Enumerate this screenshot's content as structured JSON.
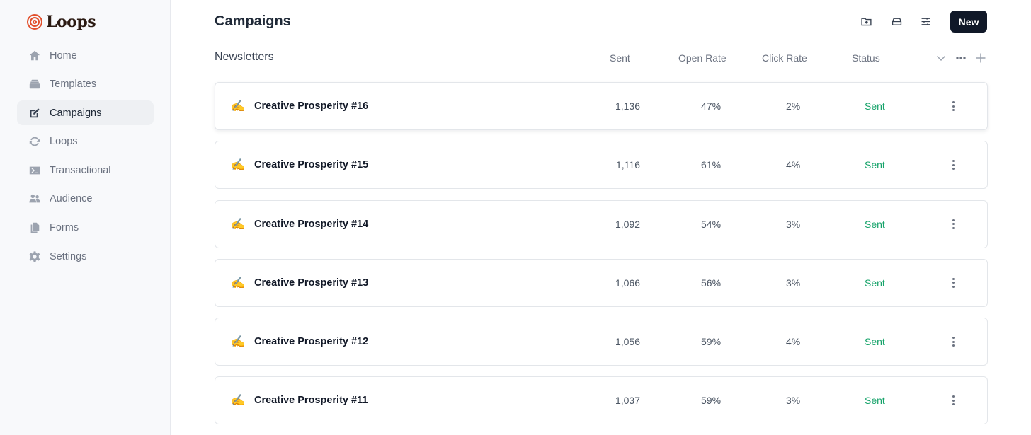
{
  "app": {
    "logo_text": "Loops",
    "brand_color": "#e2502d"
  },
  "sidebar": {
    "items": [
      {
        "label": "Home",
        "icon": "home-icon",
        "active": false
      },
      {
        "label": "Templates",
        "icon": "stack-icon",
        "active": false
      },
      {
        "label": "Campaigns",
        "icon": "edit-icon",
        "active": true
      },
      {
        "label": "Loops",
        "icon": "refresh-icon",
        "active": false
      },
      {
        "label": "Transactional",
        "icon": "terminal-icon",
        "active": false
      },
      {
        "label": "Audience",
        "icon": "users-icon",
        "active": false
      },
      {
        "label": "Forms",
        "icon": "documents-icon",
        "active": false
      },
      {
        "label": "Settings",
        "icon": "gear-icon",
        "active": false
      }
    ]
  },
  "header": {
    "title": "Campaigns",
    "icons": [
      "folder-plus-icon",
      "archive-icon",
      "sliders-icon"
    ],
    "new_label": "New"
  },
  "section": {
    "title": "Newsletters",
    "columns": {
      "sent": "Sent",
      "open_rate": "Open Rate",
      "click_rate": "Click Rate",
      "status": "Status"
    }
  },
  "campaigns": [
    {
      "emoji": "✍️",
      "name": "Creative Prosperity #16",
      "sent": "1,136",
      "open_rate": "47%",
      "click_rate": "2%",
      "status": "Sent"
    },
    {
      "emoji": "✍️",
      "name": "Creative Prosperity #15",
      "sent": "1,116",
      "open_rate": "61%",
      "click_rate": "4%",
      "status": "Sent"
    },
    {
      "emoji": "✍️",
      "name": "Creative Prosperity #14",
      "sent": "1,092",
      "open_rate": "54%",
      "click_rate": "3%",
      "status": "Sent"
    },
    {
      "emoji": "✍️",
      "name": "Creative Prosperity #13",
      "sent": "1,066",
      "open_rate": "56%",
      "click_rate": "3%",
      "status": "Sent"
    },
    {
      "emoji": "✍️",
      "name": "Creative Prosperity #12",
      "sent": "1,056",
      "open_rate": "59%",
      "click_rate": "4%",
      "status": "Sent"
    },
    {
      "emoji": "✍️",
      "name": "Creative Prosperity #11",
      "sent": "1,037",
      "open_rate": "59%",
      "click_rate": "3%",
      "status": "Sent"
    }
  ],
  "colors": {
    "status_sent": "#16a36a",
    "primary_button": "#101828"
  }
}
